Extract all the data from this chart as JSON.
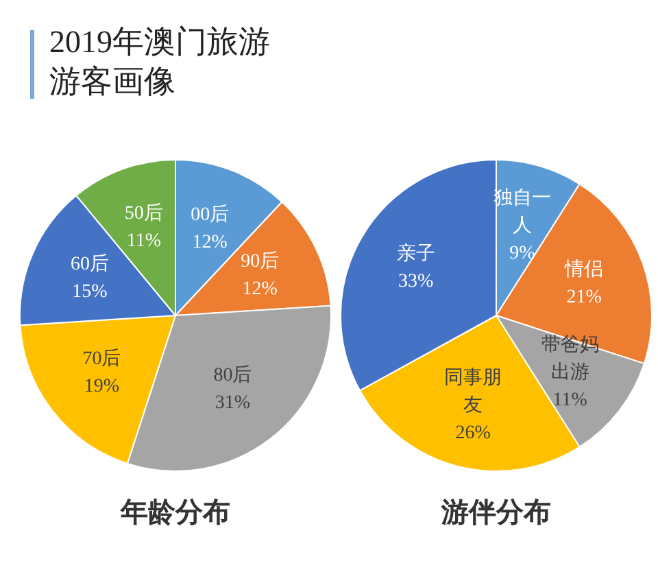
{
  "chart_data": [
    {
      "type": "pie",
      "title": "年龄分布",
      "annotations": [
        "2019年澳门旅游游客画像"
      ],
      "categories": [
        "00后",
        "90后",
        "80后",
        "70后",
        "60后",
        "50后"
      ],
      "values": [
        12,
        12,
        31,
        19,
        15,
        11
      ],
      "value_labels": [
        "12%",
        "12%",
        "31%",
        "19%",
        "15%",
        "11%"
      ],
      "colors": [
        "#5b9bd5",
        "#ed7d31",
        "#a5a5a5",
        "#ffc000",
        "#4472c4",
        "#70ad47"
      ]
    },
    {
      "type": "pie",
      "title": "游伴分布",
      "categories": [
        "独自一人",
        "情侣",
        "带爸妈出游",
        "同事朋友",
        "亲子"
      ],
      "values": [
        9,
        21,
        11,
        26,
        33
      ],
      "value_labels": [
        "9%",
        "21%",
        "11%",
        "26%",
        "33%"
      ],
      "colors": [
        "#5b9bd5",
        "#ed7d31",
        "#a5a5a5",
        "#ffc000",
        "#4472c4"
      ]
    }
  ]
}
